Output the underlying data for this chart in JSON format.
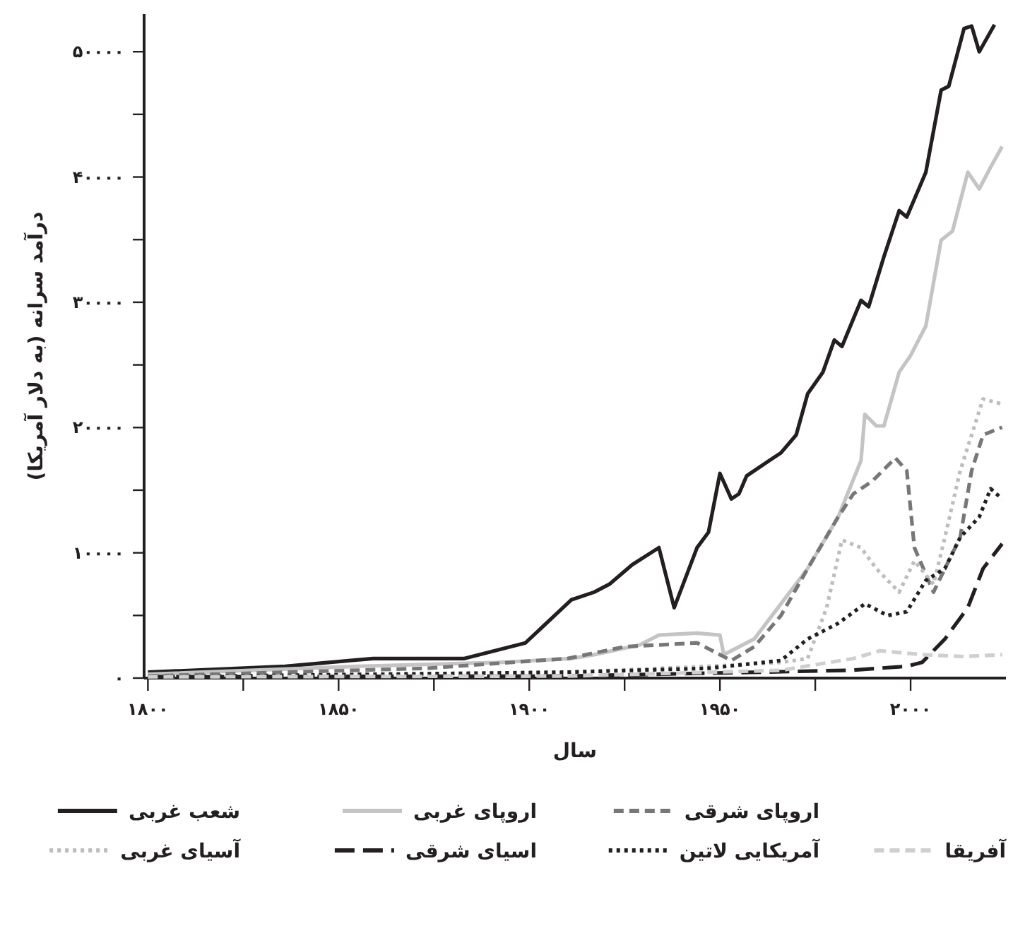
{
  "chart_data": {
    "type": "line",
    "xlabel": "سال",
    "ylabel": "درآمد سرانه (به دلار آمریکا)",
    "xlim": [
      1799,
      2025
    ],
    "ylim": [
      0,
      53000
    ],
    "xticks": [
      {
        "value": 1800,
        "label": "۱۸۰۰"
      },
      {
        "value": 1825,
        "label": null
      },
      {
        "value": 1850,
        "label": "۱۸۵۰"
      },
      {
        "value": 1875,
        "label": null
      },
      {
        "value": 1900,
        "label": "۱۹۰۰"
      },
      {
        "value": 1925,
        "label": null
      },
      {
        "value": 1950,
        "label": "۱۹۵۰"
      },
      {
        "value": 1975,
        "label": null
      },
      {
        "value": 2000,
        "label": "۲۰۰۰"
      }
    ],
    "yticks": [
      {
        "value": 0,
        "label": "۰"
      },
      {
        "value": 5000,
        "label": null
      },
      {
        "value": 10000,
        "label": "۱۰۰۰۰"
      },
      {
        "value": 15000,
        "label": null
      },
      {
        "value": 20000,
        "label": "۲۰۰۰۰"
      },
      {
        "value": 25000,
        "label": null
      },
      {
        "value": 30000,
        "label": "۳۰۰۰۰"
      },
      {
        "value": 35000,
        "label": null
      },
      {
        "value": 40000,
        "label": "۴۰۰۰۰"
      },
      {
        "value": 45000,
        "label": null
      },
      {
        "value": 50000,
        "label": "۵۰۰۰۰"
      }
    ],
    "grid": false,
    "legend": "bottom",
    "marker": "none",
    "series": [
      {
        "name": "شعب غربی",
        "color": "#231f20",
        "line_style": "solid",
        "x": [
          1800,
          1836,
          1859,
          1883,
          1899,
          1911,
          1917,
          1921,
          1927,
          1934,
          1938,
          1944,
          1947,
          1950,
          1953,
          1955,
          1957,
          1963,
          1966,
          1970,
          1973,
          1977,
          1980,
          1982,
          1987,
          1989,
          1993,
          1997,
          1999,
          2004,
          2008,
          2010,
          2014,
          2016,
          2018,
          2022
        ],
        "values": [
          470,
          940,
          1560,
          1560,
          2810,
          6240,
          6860,
          7490,
          9050,
          10410,
          5620,
          10410,
          11640,
          16340,
          14300,
          14710,
          16140,
          17370,
          17980,
          19410,
          22690,
          24420,
          26980,
          26470,
          30150,
          29640,
          33630,
          37310,
          36800,
          40380,
          46930,
          47240,
          51840,
          52050,
          50000,
          52150
        ]
      },
      {
        "name": "اروپای غربی",
        "color": "#c4c4c4",
        "line_style": "solid",
        "x": [
          1800,
          1855,
          1892,
          1911,
          1917,
          1929,
          1934,
          1944,
          1950,
          1951,
          1959,
          1966,
          1973,
          1981,
          1987,
          1988,
          1991,
          1993,
          1997,
          2000,
          2004,
          2008,
          2011,
          2015,
          2018,
          2021,
          2024
        ],
        "values": [
          310,
          940,
          1250,
          1560,
          1870,
          2650,
          3430,
          3590,
          3430,
          1870,
          3120,
          5930,
          8740,
          12860,
          17370,
          21050,
          20130,
          20130,
          24420,
          25750,
          28110,
          34960,
          35680,
          40380,
          39050,
          40790,
          42430
        ]
      },
      {
        "name": "اروپای شرقی",
        "color": "#77777a",
        "line_style": "dashed",
        "x": [
          1800,
          1873,
          1910,
          1925,
          1944,
          1953,
          1959,
          1966,
          1973,
          1981,
          1985,
          1990,
          1996,
          1999,
          2001,
          2006,
          2009,
          2013,
          2016,
          2019,
          2024
        ],
        "values": [
          160,
          780,
          1560,
          2500,
          2810,
          1400,
          2500,
          4990,
          8740,
          12860,
          14710,
          15730,
          17570,
          16550,
          10410,
          6860,
          8740,
          11230,
          16550,
          19410,
          20020
        ]
      },
      {
        "name": "آسیای غربی",
        "color": "#bdbdbd",
        "line_style": "dotted",
        "x": [
          1800,
          1910,
          1947,
          1966,
          1973,
          1978,
          1982,
          1987,
          1991,
          1997,
          2001,
          2006,
          2009,
          2013,
          2016,
          2019,
          2024
        ],
        "values": [
          100,
          470,
          940,
          1250,
          1560,
          5620,
          11020,
          10410,
          8740,
          6860,
          9360,
          7490,
          11230,
          16550,
          19410,
          22280,
          21870
        ]
      },
      {
        "name": "اسیای شرقی",
        "color": "#231f20",
        "line_style": "longdash",
        "x": [
          1800,
          1910,
          1984,
          1999,
          2003,
          2009,
          2015,
          2019,
          2024
        ],
        "values": [
          100,
          160,
          620,
          940,
          1250,
          3120,
          5620,
          8740,
          10720
        ]
      },
      {
        "name": "آمریکایی لاتین",
        "color": "#231f20",
        "line_style": "dotted",
        "x": [
          1800,
          1910,
          1947,
          1966,
          1973,
          1981,
          1988,
          1994,
          1999,
          2004,
          2009,
          2013,
          2018,
          2021,
          2024
        ],
        "values": [
          100,
          470,
          780,
          1400,
          3120,
          4370,
          5930,
          4990,
          5300,
          7800,
          8740,
          11230,
          12860,
          15120,
          14300
        ]
      },
      {
        "name": "آفریقا",
        "color": "#cfcfcf",
        "line_style": "dashed",
        "x": [
          1800,
          1910,
          1966,
          1985,
          1992,
          2003,
          2014,
          2024
        ],
        "values": [
          100,
          160,
          620,
          1560,
          2180,
          1870,
          1720,
          1870
        ]
      }
    ]
  }
}
